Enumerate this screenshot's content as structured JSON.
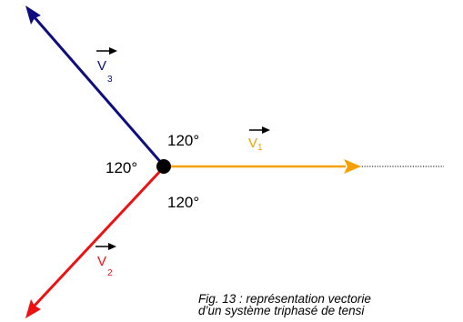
{
  "colors": {
    "v1": "#f5a000",
    "v2": "#ee1111",
    "v3": "#0d0d80",
    "node": "#000000",
    "dotted": "#000000"
  },
  "vectors": [
    {
      "id": "v1",
      "letter": "V",
      "subscript": "1",
      "color": "#f5a000"
    },
    {
      "id": "v2",
      "letter": "V",
      "subscript": "2",
      "color": "#ee1111"
    },
    {
      "id": "v3",
      "letter": "V",
      "subscript": "3",
      "color": "#0d0d80"
    }
  ],
  "angles": {
    "top": "120°",
    "left": "120°",
    "bottom": "120°"
  },
  "caption": {
    "line1": "Fig. 13 : représentation vectorie",
    "line2": "d’un système triphasé de tensi"
  }
}
